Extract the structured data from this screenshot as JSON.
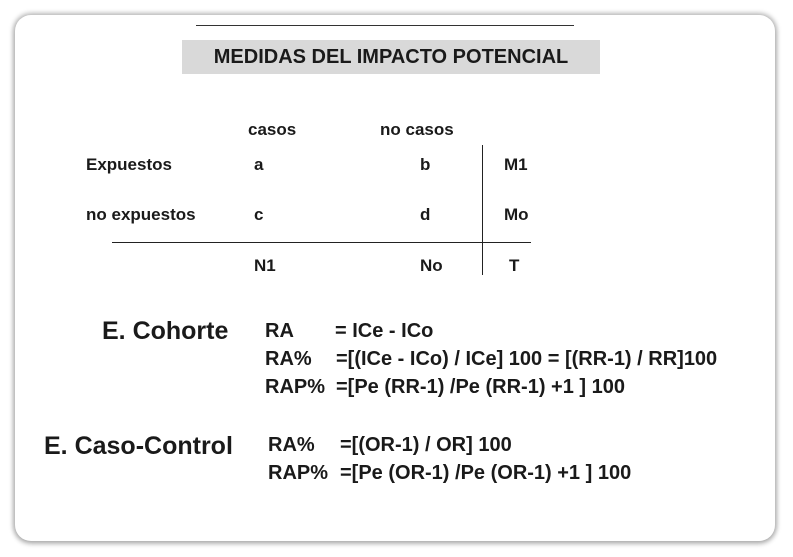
{
  "title": "MEDIDAS DEL IMPACTO POTENCIAL",
  "table": {
    "col_headers": [
      "casos",
      "no casos"
    ],
    "rows": [
      {
        "label": "Expuestos",
        "cells": [
          "a",
          "b"
        ],
        "total": "M1"
      },
      {
        "label": "no expuestos",
        "cells": [
          "c",
          "d"
        ],
        "total": "Mo"
      }
    ],
    "totals": [
      "N1",
      "No",
      "T"
    ]
  },
  "cohorte": {
    "label": "E. Cohorte",
    "lines": [
      {
        "term": "RA",
        "expr": "= ICe - ICo"
      },
      {
        "term": "RA%",
        "expr": "=[(ICe - ICo) / ICe] 100 = [(RR-1) / RR]100"
      },
      {
        "term": "RAP%",
        "expr": "=[Pe (RR-1) /Pe (RR-1) +1 ] 100"
      }
    ]
  },
  "caso_control": {
    "label": "E. Caso-Control",
    "lines": [
      {
        "term": "RA%",
        "expr": "=[(OR-1) / OR] 100"
      },
      {
        "term": "RAP%",
        "expr": "=[Pe (OR-1) /Pe (OR-1) +1 ] 100"
      }
    ]
  }
}
